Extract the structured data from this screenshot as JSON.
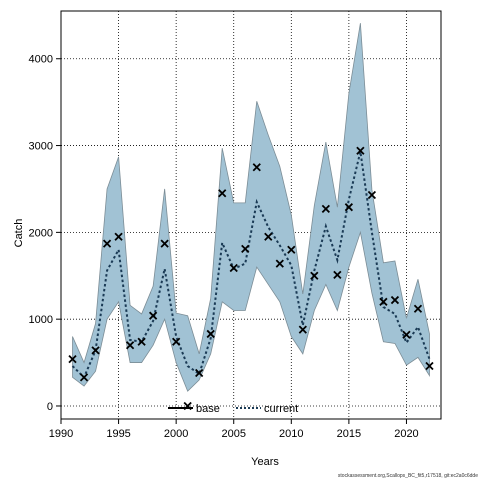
{
  "chart_data": {
    "type": "line",
    "xlabel": "Years",
    "ylabel": "Catch",
    "xlim": [
      1990,
      2023
    ],
    "ylim": [
      -150,
      4550
    ],
    "xticks": [
      1990,
      1995,
      2000,
      2005,
      2010,
      2015,
      2020
    ],
    "yticks": [
      0,
      1000,
      2000,
      3000,
      4000
    ],
    "x_tick_labels": [
      "1990",
      "1995",
      "2000",
      "2005",
      "2010",
      "2015",
      "2020"
    ],
    "y_tick_labels": [
      "0",
      "1000",
      "2000",
      "3000",
      "4000"
    ],
    "grid": true,
    "grid_style": "dotted",
    "years": [
      1991,
      1992,
      1993,
      1994,
      1995,
      1996,
      1997,
      1998,
      1999,
      2000,
      2001,
      2002,
      2003,
      2004,
      2005,
      2006,
      2007,
      2008,
      2009,
      2010,
      2011,
      2012,
      2013,
      2014,
      2015,
      2016,
      2017,
      2018,
      2019,
      2020,
      2021,
      2022
    ],
    "band_lower": [
      330,
      230,
      400,
      1000,
      1200,
      500,
      500,
      700,
      1000,
      500,
      170,
      300,
      600,
      1200,
      1100,
      1100,
      1600,
      1400,
      1200,
      800,
      600,
      1100,
      1400,
      1100,
      1600,
      2000,
      1300,
      740,
      720,
      470,
      560,
      350
    ],
    "band_upper": [
      800,
      500,
      950,
      2500,
      2870,
      1160,
      1060,
      1380,
      2500,
      1070,
      1040,
      600,
      1240,
      2970,
      2340,
      2340,
      3510,
      3120,
      2760,
      2200,
      1290,
      2310,
      3040,
      2290,
      3600,
      4410,
      2490,
      1650,
      1670,
      1010,
      1460,
      830
    ],
    "series": [
      {
        "name": "current",
        "color": "#1a3a55",
        "style": "dotted",
        "values": [
          460,
          330,
          640,
          1560,
          1800,
          760,
          740,
          980,
          1580,
          800,
          460,
          370,
          780,
          1880,
          1580,
          1640,
          2350,
          2060,
          1850,
          1620,
          930,
          1560,
          2070,
          1680,
          2380,
          2930,
          2000,
          1140,
          1060,
          730,
          910,
          540
        ]
      }
    ],
    "observed": {
      "marker": "x",
      "values": [
        540,
        330,
        640,
        1870,
        1950,
        700,
        740,
        1040,
        1870,
        740,
        0,
        380,
        830,
        2450,
        1590,
        1810,
        2750,
        1950,
        1640,
        1800,
        880,
        1500,
        2270,
        1510,
        2290,
        2940,
        2430,
        1200,
        1220,
        820,
        1120,
        460
      ]
    },
    "legend": {
      "position": "bottom-center",
      "entries": [
        {
          "label": "base",
          "style": "solid",
          "color": "#000000"
        },
        {
          "label": "current",
          "style": "dotted",
          "color": "#1a3a55"
        }
      ]
    },
    "band_fill": "#a1c2d4",
    "band_stroke": "#7c8d96"
  },
  "footer": {
    "credit": "stockassessment.org,Scallops_BC_fit5,r17518, git:ec2a0c6dde"
  }
}
